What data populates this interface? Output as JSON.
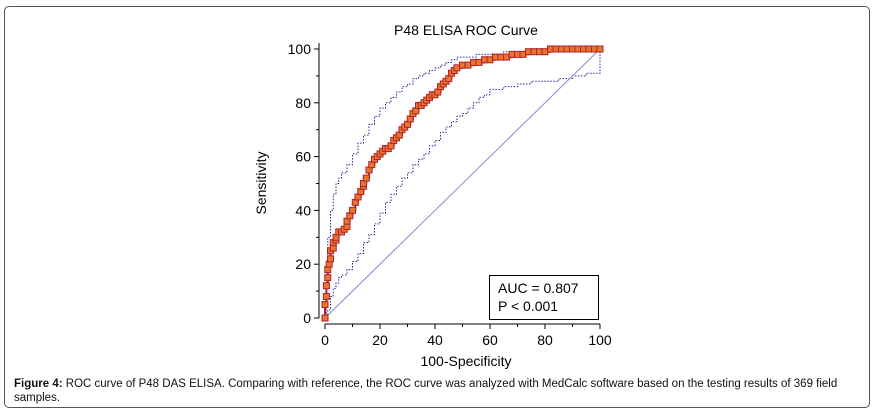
{
  "chart_data": {
    "type": "line",
    "title": "P48 ELISA ROC Curve",
    "xlabel": "100-Specificity",
    "ylabel": "Sensitivity",
    "xlim": [
      0,
      100
    ],
    "ylim": [
      0,
      100
    ],
    "xticks": [
      "0",
      "20",
      "40",
      "60",
      "80",
      "100"
    ],
    "yticks": [
      "0",
      "20",
      "40",
      "60",
      "80",
      "100"
    ],
    "series": [
      {
        "name": "ROC curve",
        "x": [
          0,
          0,
          0.5,
          0.5,
          1,
          1,
          1.5,
          2,
          2,
          3,
          3,
          4,
          4,
          5,
          6,
          7,
          8,
          8,
          9,
          10,
          11,
          12,
          13,
          14,
          14,
          15,
          16,
          17,
          18,
          19,
          20,
          21,
          22,
          23,
          24,
          25,
          26,
          27,
          28,
          29,
          30,
          31,
          32,
          33,
          34,
          35,
          36,
          37,
          38,
          39,
          40,
          41,
          42,
          43,
          44,
          45,
          46,
          47,
          48,
          50,
          52,
          54,
          56,
          58,
          60,
          62,
          64,
          66,
          68,
          70,
          72,
          74,
          76,
          78,
          80,
          82,
          84,
          86,
          88,
          90,
          92,
          94,
          96,
          98,
          100
        ],
        "y": [
          0,
          5,
          8,
          12,
          15,
          18,
          20,
          22,
          25,
          26,
          28,
          29,
          30,
          32,
          32,
          33,
          34,
          36,
          38,
          40,
          43,
          45,
          47,
          49,
          50,
          52,
          55,
          57,
          59,
          60,
          61,
          62,
          63,
          63,
          64,
          66,
          67,
          68,
          70,
          71,
          72,
          74,
          76,
          77,
          79,
          79,
          80,
          81,
          82,
          83,
          83,
          84,
          86,
          87,
          88,
          89,
          91,
          92,
          93,
          94,
          94,
          95,
          95,
          96,
          96,
          97,
          97,
          97,
          98,
          98,
          98,
          99,
          99,
          99,
          99,
          100,
          100,
          100,
          100,
          100,
          100,
          100,
          100,
          100,
          100
        ]
      },
      {
        "name": "Upper 95% CI",
        "x": [
          0,
          0.5,
          1,
          2,
          3,
          4,
          5,
          6,
          8,
          10,
          12,
          14,
          16,
          18,
          20,
          22,
          24,
          26,
          28,
          30,
          32,
          34,
          36,
          38,
          40,
          42,
          44,
          46,
          48,
          50,
          55,
          60,
          65,
          70,
          80,
          90,
          100
        ],
        "y": [
          0,
          15,
          30,
          40,
          46,
          50,
          52,
          54,
          57,
          61,
          65,
          68,
          72,
          75,
          78,
          80,
          82,
          84,
          86,
          87,
          89,
          90,
          91,
          92,
          93,
          94,
          95,
          96,
          97,
          97,
          98,
          98,
          99,
          99,
          99.5,
          100,
          100
        ]
      },
      {
        "name": "Lower 95% CI",
        "x": [
          0,
          1,
          2,
          3,
          4,
          5,
          6,
          8,
          10,
          12,
          14,
          16,
          18,
          20,
          22,
          24,
          26,
          28,
          30,
          32,
          34,
          36,
          38,
          40,
          42,
          44,
          46,
          48,
          50,
          52,
          54,
          56,
          58,
          60,
          65,
          70,
          75,
          80,
          85,
          90,
          95,
          100
        ],
        "y": [
          0,
          3,
          8,
          11,
          13,
          15,
          16,
          18,
          21,
          24,
          28,
          31,
          35,
          39,
          43,
          46,
          49,
          52,
          54,
          57,
          59,
          61,
          64,
          66,
          69,
          71,
          73,
          75,
          76,
          78,
          80,
          82,
          83,
          85,
          86,
          87,
          88,
          88,
          89,
          90,
          91,
          100
        ]
      },
      {
        "name": "Reference line",
        "x": [
          0,
          100
        ],
        "y": [
          0,
          100
        ]
      }
    ],
    "annotations": [
      "AUC = 0.807",
      "P < 0.001"
    ]
  },
  "caption": {
    "label": "Figure 4:",
    "text": " ROC curve of P48 DAS ELISA. Comparing with reference, the ROC curve was analyzed with MedCalc software based on the testing results of 369 field samples."
  },
  "colors": {
    "roc_line": "#b02030",
    "marker_fill": "#e8762a",
    "marker_stroke": "#b02030",
    "ci_line": "#2a2a9a",
    "ref_line": "#8a8ad0"
  }
}
